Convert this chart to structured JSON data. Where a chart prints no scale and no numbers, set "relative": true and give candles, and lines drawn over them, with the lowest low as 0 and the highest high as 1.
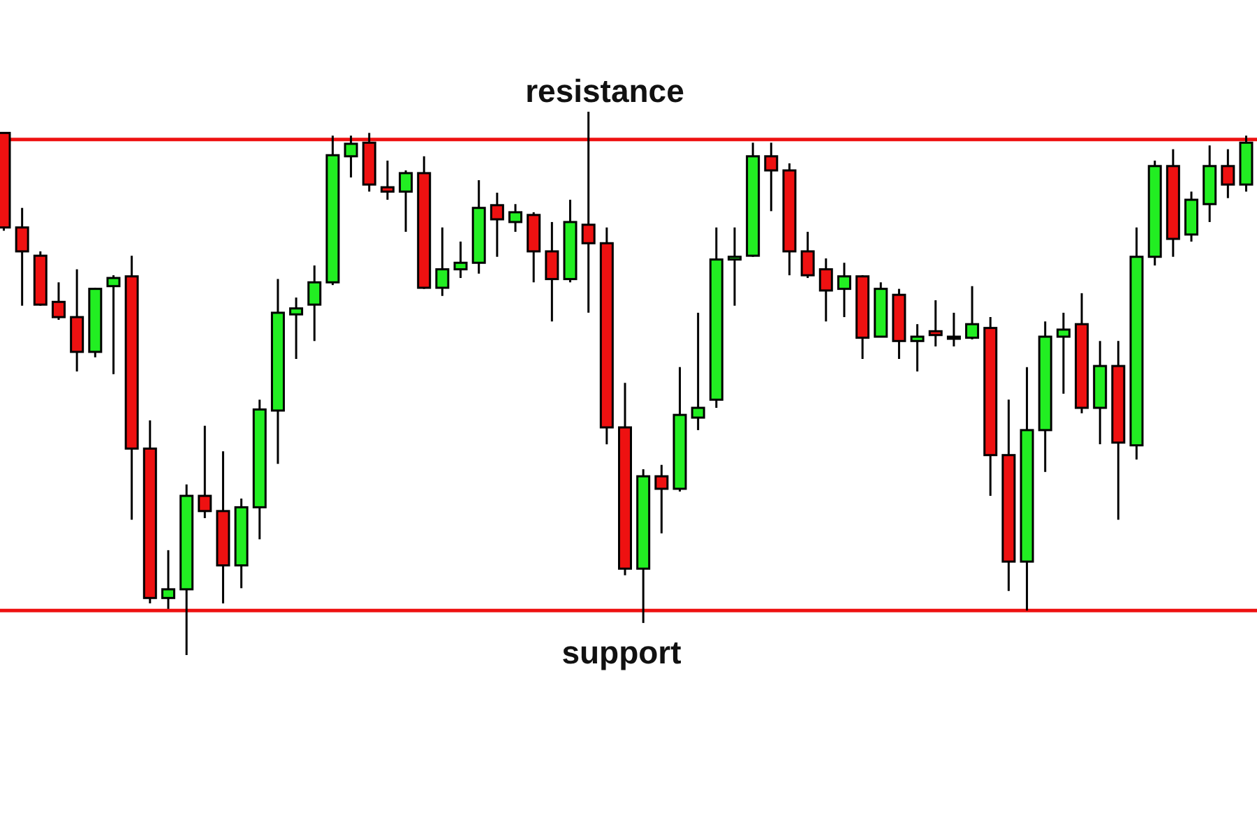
{
  "chart_data": {
    "type": "candlestick",
    "relative": true,
    "categories": [
      null,
      null,
      null,
      null,
      null,
      null,
      null,
      null,
      null,
      null,
      null,
      null,
      null,
      null,
      null,
      null,
      null,
      null,
      null,
      null,
      null,
      null,
      null,
      null,
      null,
      null,
      null,
      null,
      null,
      null,
      null,
      null,
      null,
      null,
      null,
      null,
      null,
      null,
      null,
      null,
      null,
      null,
      null,
      null,
      null,
      null,
      null,
      null,
      null,
      null,
      null,
      null,
      null,
      null,
      null,
      null,
      null,
      null,
      null,
      null,
      null,
      null,
      null,
      null,
      null,
      null,
      null,
      null,
      null
    ],
    "ohlc": [
      [
        0.961,
        0.961,
        0.781,
        0.787
      ],
      [
        0.787,
        0.823,
        0.643,
        0.743
      ],
      [
        0.735,
        0.743,
        0.643,
        0.645
      ],
      [
        0.65,
        0.686,
        0.617,
        0.622
      ],
      [
        0.622,
        0.71,
        0.522,
        0.558
      ],
      [
        0.558,
        0.676,
        0.548,
        0.674
      ],
      [
        0.679,
        0.699,
        0.517,
        0.694
      ],
      [
        0.697,
        0.735,
        0.249,
        0.38
      ],
      [
        0.38,
        0.432,
        0.095,
        0.105
      ],
      [
        0.105,
        0.193,
        0.085,
        0.121
      ],
      [
        0.121,
        0.314,
        0,
        0.293
      ],
      [
        0.293,
        0.422,
        0.252,
        0.265
      ],
      [
        0.265,
        0.375,
        0.095,
        0.165
      ],
      [
        0.165,
        0.288,
        0.123,
        0.272
      ],
      [
        0.272,
        0.47,
        0.213,
        0.452
      ],
      [
        0.45,
        0.692,
        0.352,
        0.63
      ],
      [
        0.627,
        0.658,
        0.545,
        0.638
      ],
      [
        0.645,
        0.717,
        0.578,
        0.686
      ],
      [
        0.686,
        0.956,
        0.681,
        0.92
      ],
      [
        0.918,
        0.956,
        0.879,
        0.941
      ],
      [
        0.943,
        0.961,
        0.853,
        0.866
      ],
      [
        0.861,
        0.91,
        0.838,
        0.853
      ],
      [
        0.853,
        0.892,
        0.779,
        0.887
      ],
      [
        0.887,
        0.918,
        0.674,
        0.676
      ],
      [
        0.676,
        0.787,
        0.661,
        0.71
      ],
      [
        0.71,
        0.761,
        0.694,
        0.722
      ],
      [
        0.722,
        0.874,
        0.702,
        0.823
      ],
      [
        0.828,
        0.851,
        0.733,
        0.802
      ],
      [
        0.797,
        0.83,
        0.779,
        0.815
      ],
      [
        0.81,
        0.815,
        0.686,
        0.743
      ],
      [
        0.743,
        0.797,
        0.614,
        0.692
      ],
      [
        0.692,
        0.838,
        0.686,
        0.797
      ],
      [
        0.792,
        1,
        0.63,
        0.758
      ],
      [
        0.758,
        0.787,
        0.388,
        0.419
      ],
      [
        0.419,
        0.501,
        0.147,
        0.159
      ],
      [
        0.159,
        0.342,
        0.059,
        0.329
      ],
      [
        0.329,
        0.35,
        0.224,
        0.306
      ],
      [
        0.306,
        0.53,
        0.301,
        0.442
      ],
      [
        0.437,
        0.63,
        0.414,
        0.455
      ],
      [
        0.47,
        0.787,
        0.455,
        0.728
      ],
      [
        0.728,
        0.787,
        0.643,
        0.733
      ],
      [
        0.735,
        0.943,
        0.733,
        0.918
      ],
      [
        0.918,
        0.943,
        0.817,
        0.892
      ],
      [
        0.892,
        0.905,
        0.699,
        0.743
      ],
      [
        0.743,
        0.779,
        0.694,
        0.699
      ],
      [
        0.71,
        0.73,
        0.614,
        0.671
      ],
      [
        0.674,
        0.722,
        0.622,
        0.697
      ],
      [
        0.697,
        0.699,
        0.545,
        0.584
      ],
      [
        0.586,
        0.686,
        0.586,
        0.674
      ],
      [
        0.663,
        0.674,
        0.545,
        0.578
      ],
      [
        0.578,
        0.609,
        0.522,
        0.586
      ],
      [
        0.596,
        0.653,
        0.568,
        0.589
      ],
      [
        0.586,
        0.63,
        0.568,
        0.586
      ],
      [
        0.584,
        0.679,
        0.581,
        0.609
      ],
      [
        0.602,
        0.622,
        0.293,
        0.368
      ],
      [
        0.368,
        0.47,
        0.118,
        0.172
      ],
      [
        0.172,
        0.53,
        0.082,
        0.414
      ],
      [
        0.414,
        0.614,
        0.337,
        0.586
      ],
      [
        0.586,
        0.63,
        0.481,
        0.599
      ],
      [
        0.609,
        0.666,
        0.445,
        0.455
      ],
      [
        0.455,
        0.578,
        0.388,
        0.532
      ],
      [
        0.532,
        0.578,
        0.249,
        0.391
      ],
      [
        0.386,
        0.787,
        0.36,
        0.733
      ],
      [
        0.733,
        0.91,
        0.717,
        0.9
      ],
      [
        0.9,
        0.931,
        0.733,
        0.766
      ],
      [
        0.774,
        0.853,
        0.761,
        0.838
      ],
      [
        0.83,
        0.938,
        0.797,
        0.9
      ],
      [
        0.9,
        0.931,
        0.841,
        0.866
      ],
      [
        0.866,
        0.956,
        0.853,
        0.943
      ]
    ],
    "colors": [
      "#ee1111",
      "#ee1111",
      "#ee1111",
      "#ee1111",
      "#ee1111",
      "#22ee22",
      "#22ee22",
      "#ee1111",
      "#ee1111",
      "#22ee22",
      "#22ee22",
      "#ee1111",
      "#ee1111",
      "#22ee22",
      "#22ee22",
      "#22ee22",
      "#22ee22",
      "#22ee22",
      "#22ee22",
      "#22ee22",
      "#ee1111",
      "#ee1111",
      "#22ee22",
      "#ee1111",
      "#22ee22",
      "#22ee22",
      "#22ee22",
      "#ee1111",
      "#22ee22",
      "#ee1111",
      "#ee1111",
      "#22ee22",
      "#ee1111",
      "#ee1111",
      "#ee1111",
      "#22ee22",
      "#ee1111",
      "#22ee22",
      "#22ee22",
      "#22ee22",
      "#22ee22",
      "#22ee22",
      "#ee1111",
      "#ee1111",
      "#ee1111",
      "#ee1111",
      "#22ee22",
      "#ee1111",
      "#22ee22",
      "#ee1111",
      "#22ee22",
      "#ee1111",
      "#22ee22",
      "#22ee22",
      "#ee1111",
      "#ee1111",
      "#22ee22",
      "#22ee22",
      "#22ee22",
      "#ee1111",
      "#22ee22",
      "#ee1111",
      "#22ee22",
      "#22ee22",
      "#ee1111",
      "#22ee22",
      "#22ee22",
      "#ee1111",
      "#22ee22"
    ],
    "ref_lines": [
      {
        "axis": "y",
        "value": 0.949,
        "label": "resistance",
        "color": "#ee1111"
      },
      {
        "axis": "y",
        "value": 0.082,
        "label": "support",
        "color": "#ee1111"
      }
    ],
    "grid": false,
    "tick_labels": false
  }
}
